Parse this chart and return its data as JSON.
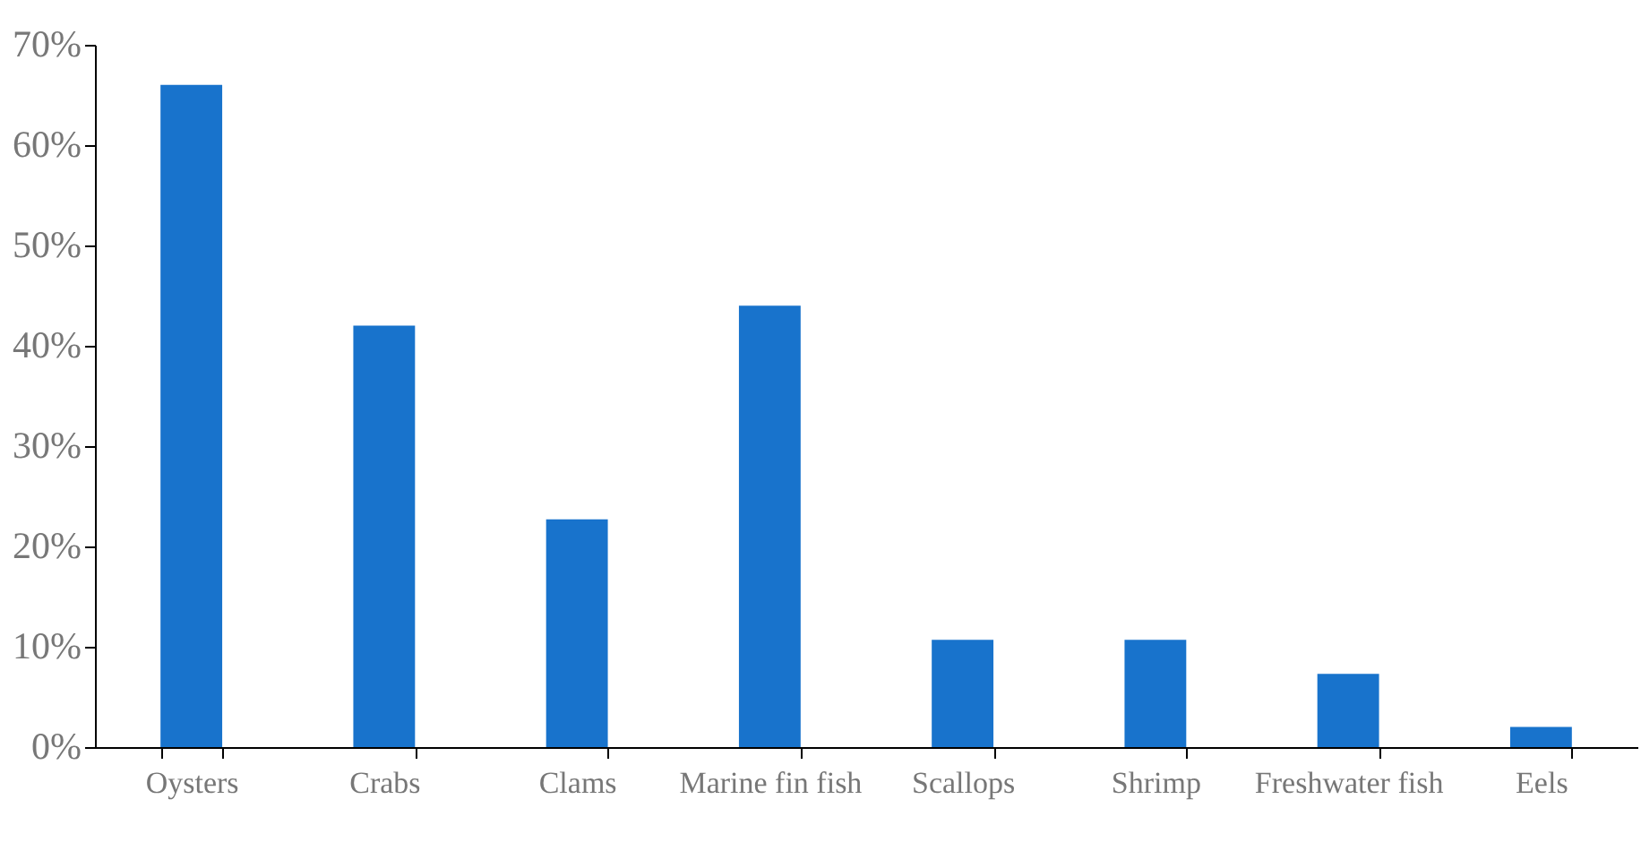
{
  "chart_data": {
    "type": "bar",
    "categories": [
      "Oysters",
      "Crabs",
      "Clams",
      "Marine fin fish",
      "Scallops",
      "Shrimp",
      "Freshwater fish",
      "Eels"
    ],
    "values": [
      66,
      42,
      22.7,
      44,
      10.7,
      10.7,
      7.3,
      2
    ],
    "color": "#1873cc",
    "ylim": [
      0,
      70
    ],
    "yticks": [
      {
        "value": 0,
        "label": "0%"
      },
      {
        "value": 10,
        "label": "10%"
      },
      {
        "value": 20,
        "label": "20%"
      },
      {
        "value": 30,
        "label": "30%"
      },
      {
        "value": 40,
        "label": "40%"
      },
      {
        "value": 50,
        "label": "50%"
      },
      {
        "value": 60,
        "label": "60%"
      },
      {
        "value": 70,
        "label": "70%"
      }
    ]
  }
}
